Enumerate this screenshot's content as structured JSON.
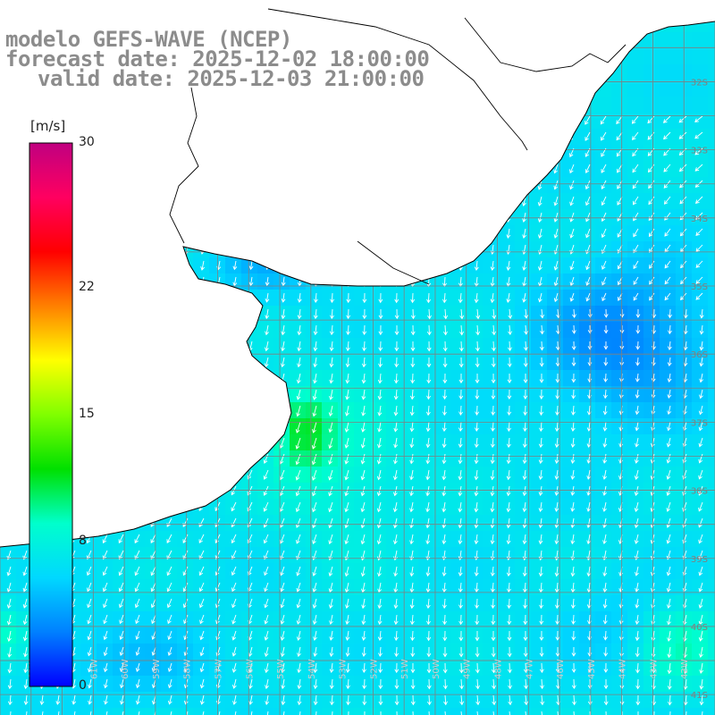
{
  "title": {
    "model": "modelo GEFS-WAVE (NCEP)",
    "forecast": "forecast date: 2025-12-02 18:00:00",
    "valid": "valid date: 2025-12-03 21:00:00"
  },
  "colorbar": {
    "units": "[m/s]",
    "ticks": [
      {
        "value": 30,
        "label": "30"
      },
      {
        "value": 22,
        "label": "22"
      },
      {
        "value": 15,
        "label": "15"
      },
      {
        "value": 8,
        "label": "8"
      },
      {
        "value": 0,
        "label": "0"
      }
    ],
    "range": [
      0,
      30
    ],
    "colors": [
      "#0000ff",
      "#0080ff",
      "#00d8ff",
      "#00ffcc",
      "#00e000",
      "#80ff00",
      "#ffff00",
      "#ff8000",
      "#ff0000",
      "#ff0060",
      "#c00080"
    ]
  },
  "map": {
    "lon_range": [
      -64,
      -41
    ],
    "lat_range": [
      -41.3,
      -30.8
    ],
    "lat_labels": [
      "32S",
      "33S",
      "34S",
      "35S",
      "36S",
      "37S",
      "38S",
      "39S",
      "40S",
      "41S"
    ],
    "lon_labels": [
      "63W",
      "62W",
      "61W",
      "60W",
      "59W",
      "58W",
      "57W",
      "56W",
      "55W",
      "54W",
      "53W",
      "52W",
      "51W",
      "50W",
      "49W",
      "48W",
      "47W",
      "46W",
      "45W",
      "44W",
      "43W",
      "42W"
    ],
    "land_color": "#ffffff",
    "coast_color": "#000000",
    "grid_color": "#808080",
    "arrow_color": "#ffffff",
    "wind_field": "wind speed and direction, mostly from the north-east"
  }
}
